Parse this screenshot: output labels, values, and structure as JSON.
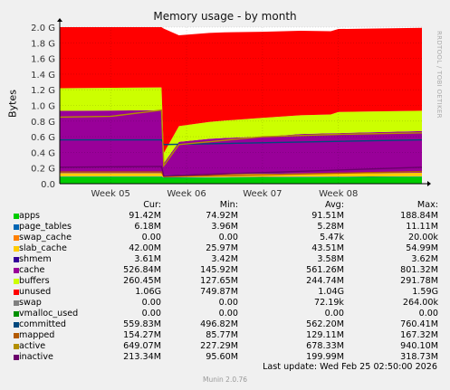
{
  "title": "Memory usage - by month",
  "ylabel": "Bytes",
  "side_text": "RRDTOOL / TOBI OETIKER",
  "legend_headers": {
    "cur": "Cur:",
    "min": "Min:",
    "avg": "Avg:",
    "max": "Max:"
  },
  "legend": [
    {
      "name": "apps",
      "color": "#00CC00",
      "cur": "91.42M",
      "min": "74.92M",
      "avg": "91.51M",
      "max": "188.84M"
    },
    {
      "name": "page_tables",
      "color": "#0066B3",
      "cur": "6.18M",
      "min": "3.96M",
      "avg": "5.28M",
      "max": "11.11M"
    },
    {
      "name": "swap_cache",
      "color": "#FF8000",
      "cur": "0.00",
      "min": "0.00",
      "avg": "5.47k",
      "max": "20.00k"
    },
    {
      "name": "slab_cache",
      "color": "#FFCC00",
      "cur": "42.00M",
      "min": "25.97M",
      "avg": "43.51M",
      "max": "54.99M"
    },
    {
      "name": "shmem",
      "color": "#330099",
      "cur": "3.61M",
      "min": "3.42M",
      "avg": "3.58M",
      "max": "3.62M"
    },
    {
      "name": "cache",
      "color": "#990099",
      "cur": "526.84M",
      "min": "145.92M",
      "avg": "561.26M",
      "max": "801.32M"
    },
    {
      "name": "buffers",
      "color": "#CCFF00",
      "cur": "260.45M",
      "min": "127.65M",
      "avg": "244.74M",
      "max": "291.78M"
    },
    {
      "name": "unused",
      "color": "#FF0000",
      "cur": "1.06G",
      "min": "749.87M",
      "avg": "1.04G",
      "max": "1.59G"
    },
    {
      "name": "swap",
      "color": "#808080",
      "cur": "0.00",
      "min": "0.00",
      "avg": "72.19k",
      "max": "264.00k"
    },
    {
      "name": "vmalloc_used",
      "color": "#008F00",
      "cur": "0.00",
      "min": "0.00",
      "avg": "0.00",
      "max": "0.00"
    },
    {
      "name": "committed",
      "color": "#00487D",
      "cur": "559.83M",
      "min": "496.82M",
      "avg": "562.20M",
      "max": "760.41M"
    },
    {
      "name": "mapped",
      "color": "#B35A00",
      "cur": "154.27M",
      "min": "85.77M",
      "avg": "129.11M",
      "max": "167.32M"
    },
    {
      "name": "active",
      "color": "#B38F00",
      "cur": "649.07M",
      "min": "227.29M",
      "avg": "678.33M",
      "max": "940.10M"
    },
    {
      "name": "inactive",
      "color": "#6B006B",
      "cur": "213.34M",
      "min": "95.60M",
      "avg": "199.99M",
      "max": "318.73M"
    }
  ],
  "last_update": "Last update: Wed Feb 25 02:50:00 2026",
  "munin_version": "Munin 2.0.76",
  "chart_data": {
    "type": "area",
    "title": "Memory usage - by month",
    "ylabel": "Bytes",
    "y_ticks": [
      "0.0",
      "0.2 G",
      "0.4 G",
      "0.6 G",
      "0.8 G",
      "1.0 G",
      "1.2 G",
      "1.4 G",
      "1.6 G",
      "1.8 G",
      "2.0 G"
    ],
    "ylim_gb": [
      0,
      2.0
    ],
    "x_ticks": [
      "Week 05",
      "Week 06",
      "Week 07",
      "Week 08"
    ],
    "x_tick_pos_weeks": [
      1,
      2,
      3,
      4
    ],
    "xlim_weeks": [
      0.33,
      5.1
    ],
    "grid": true,
    "series_stacked_gb": [
      {
        "name": "apps",
        "color": "#00CC00",
        "points": [
          [
            0.33,
            0.09
          ],
          [
            1.67,
            0.09
          ],
          [
            1.7,
            0.075
          ],
          [
            5.1,
            0.09
          ]
        ]
      },
      {
        "name": "page_tables",
        "color": "#0066B3",
        "points": [
          [
            0.33,
            0.006
          ],
          [
            5.1,
            0.006
          ]
        ]
      },
      {
        "name": "slab_cache",
        "color": "#FFCC00",
        "points": [
          [
            0.33,
            0.04
          ],
          [
            1.67,
            0.04
          ],
          [
            1.7,
            0.026
          ],
          [
            2.5,
            0.04
          ],
          [
            5.1,
            0.042
          ]
        ]
      },
      {
        "name": "shmem",
        "color": "#330099",
        "points": [
          [
            0.33,
            0.004
          ],
          [
            5.1,
            0.004
          ]
        ]
      },
      {
        "name": "cache",
        "color": "#990099",
        "points": [
          [
            0.33,
            0.79
          ],
          [
            1.67,
            0.8
          ],
          [
            1.7,
            0.15
          ],
          [
            1.9,
            0.42
          ],
          [
            2.3,
            0.45
          ],
          [
            3.0,
            0.47
          ],
          [
            3.5,
            0.5
          ],
          [
            4.0,
            0.51
          ],
          [
            5.1,
            0.53
          ]
        ]
      },
      {
        "name": "buffers",
        "color": "#CCFF00",
        "points": [
          [
            0.33,
            0.29
          ],
          [
            1.67,
            0.29
          ],
          [
            1.7,
            0.13
          ],
          [
            1.9,
            0.2
          ],
          [
            3.0,
            0.24
          ],
          [
            3.9,
            0.24
          ],
          [
            4.0,
            0.27
          ],
          [
            5.1,
            0.26
          ]
        ]
      },
      {
        "name": "unused",
        "color": "#FF0000",
        "points": [
          [
            0.33,
            0.78
          ],
          [
            1.67,
            0.77
          ],
          [
            1.7,
            1.59
          ],
          [
            1.9,
            1.16
          ],
          [
            3.0,
            1.1
          ],
          [
            4.0,
            1.06
          ],
          [
            5.1,
            1.06
          ]
        ]
      }
    ],
    "series_lines_gb": [
      {
        "name": "committed",
        "color": "#00487D",
        "points": [
          [
            0.33,
            0.56
          ],
          [
            1.67,
            0.56
          ],
          [
            1.7,
            0.5
          ],
          [
            5.1,
            0.56
          ]
        ]
      },
      {
        "name": "mapped",
        "color": "#B35A00",
        "points": [
          [
            0.33,
            0.15
          ],
          [
            1.67,
            0.15
          ],
          [
            1.7,
            0.09
          ],
          [
            5.1,
            0.155
          ]
        ]
      },
      {
        "name": "active",
        "color": "#B38F00",
        "points": [
          [
            0.33,
            0.85
          ],
          [
            1.0,
            0.86
          ],
          [
            1.67,
            0.94
          ],
          [
            1.7,
            0.23
          ],
          [
            1.9,
            0.5
          ],
          [
            3.0,
            0.6
          ],
          [
            4.0,
            0.63
          ],
          [
            5.1,
            0.65
          ]
        ]
      },
      {
        "name": "inactive",
        "color": "#6B006B",
        "points": [
          [
            0.33,
            0.21
          ],
          [
            1.67,
            0.22
          ],
          [
            1.7,
            0.1
          ],
          [
            5.1,
            0.21
          ]
        ]
      }
    ]
  }
}
